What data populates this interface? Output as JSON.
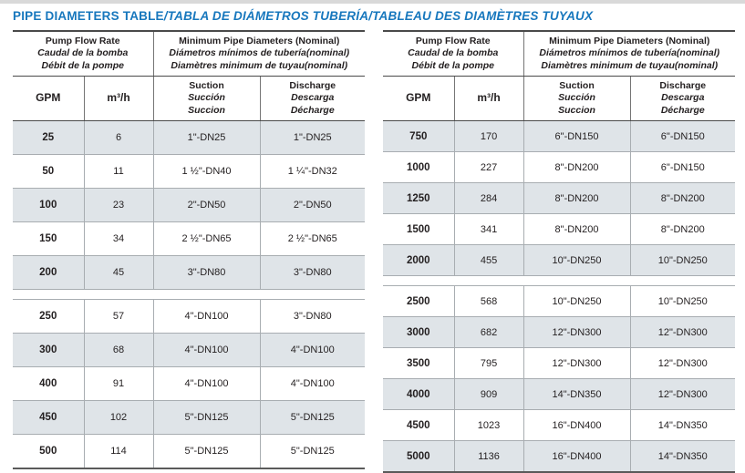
{
  "title": {
    "main": "PIPE DIAMETERS TABLE",
    "rest": "/TABLA DE DIÁMETROS TUBERÍA/TABLEAU DES DIAMÈTRES TUYAUX"
  },
  "colors": {
    "title_blue": "#1777bd",
    "shaded_row": "#dfe4e8",
    "border_dark": "#4a4a4a",
    "border_gray": "#a8adb1",
    "text": "#231f20"
  },
  "header": {
    "flow_group": [
      "Pump Flow Rate",
      "Caudal de la bomba",
      "Débit de la pompe"
    ],
    "diam_group": [
      "Minimum Pipe Diameters (Nominal)",
      "Diámetros mínimos de tubería(nominal)",
      "Diamètres minimum de tuyau(nominal)"
    ],
    "gpm_label": "GPM",
    "m3h_label": "m³/h",
    "suction": [
      "Suction",
      "Succión",
      "Succion"
    ],
    "discharge": [
      "Discharge",
      "Descarga",
      "Décharge"
    ]
  },
  "tables": [
    {
      "id": "left",
      "groups": [
        [
          [
            "25",
            "6",
            "1\"-DN25",
            "1\"-DN25"
          ],
          [
            "50",
            "11",
            "1 ½\"-DN40",
            "1 ¼\"-DN32"
          ],
          [
            "100",
            "23",
            "2\"-DN50",
            "2\"-DN50"
          ],
          [
            "150",
            "34",
            "2 ½\"-DN65",
            "2 ½\"-DN65"
          ],
          [
            "200",
            "45",
            "3\"-DN80",
            "3\"-DN80"
          ]
        ],
        [
          [
            "250",
            "57",
            "4\"-DN100",
            "3\"-DN80"
          ],
          [
            "300",
            "68",
            "4\"-DN100",
            "4\"-DN100"
          ],
          [
            "400",
            "91",
            "4\"-DN100",
            "4\"-DN100"
          ],
          [
            "450",
            "102",
            "5\"-DN125",
            "5\"-DN125"
          ],
          [
            "500",
            "114",
            "5\"-DN125",
            "5\"-DN125"
          ]
        ]
      ]
    },
    {
      "id": "right",
      "groups": [
        [
          [
            "750",
            "170",
            "6\"-DN150",
            "6\"-DN150"
          ],
          [
            "1000",
            "227",
            "8\"-DN200",
            "6\"-DN150"
          ],
          [
            "1250",
            "284",
            "8\"-DN200",
            "8\"-DN200"
          ],
          [
            "1500",
            "341",
            "8\"-DN200",
            "8\"-DN200"
          ],
          [
            "2000",
            "455",
            "10\"-DN250",
            "10\"-DN250"
          ]
        ],
        [
          [
            "2500",
            "568",
            "10\"-DN250",
            "10\"-DN250"
          ],
          [
            "3000",
            "682",
            "12\"-DN300",
            "12\"-DN300"
          ],
          [
            "3500",
            "795",
            "12\"-DN300",
            "12\"-DN300"
          ],
          [
            "4000",
            "909",
            "14\"-DN350",
            "12\"-DN300"
          ],
          [
            "4500",
            "1023",
            "16\"-DN400",
            "14\"-DN350"
          ],
          [
            "5000",
            "1136",
            "16\"-DN400",
            "14\"-DN350"
          ]
        ]
      ]
    }
  ]
}
